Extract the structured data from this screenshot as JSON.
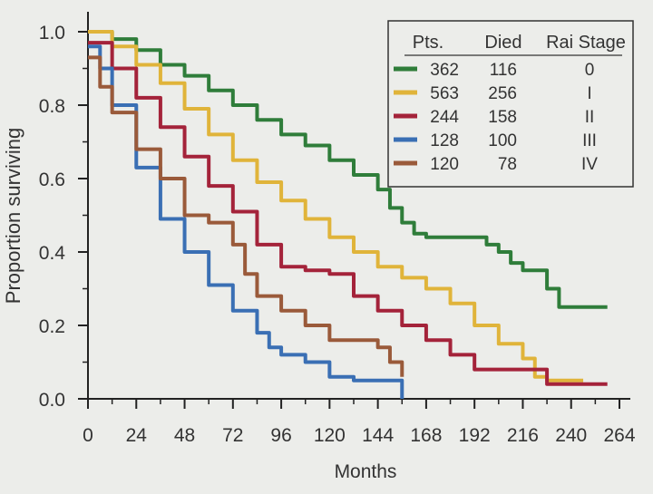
{
  "chart_data": {
    "type": "line",
    "xlabel": "Months",
    "ylabel": "Proportion surviving",
    "xlim": [
      0,
      264
    ],
    "ylim": [
      0,
      1.0
    ],
    "x_ticks": [
      0,
      24,
      48,
      72,
      96,
      120,
      144,
      168,
      192,
      216,
      240,
      264
    ],
    "y_ticks": [
      0.0,
      0.2,
      0.4,
      0.6,
      0.8,
      1.0
    ],
    "y_tick_labels": [
      "0.0",
      "0.2",
      "0.4",
      "0.6",
      "0.8",
      "1.0"
    ],
    "grid": false,
    "legend": {
      "placement": "top-right",
      "headers": [
        "Pts.",
        "Died",
        "Rai Stage"
      ],
      "rows": [
        {
          "pts": "362",
          "died": "116",
          "stage": "0"
        },
        {
          "pts": "563",
          "died": "256",
          "stage": "I"
        },
        {
          "pts": "244",
          "died": "158",
          "stage": "II"
        },
        {
          "pts": "128",
          "died": "100",
          "stage": "III"
        },
        {
          "pts": "120",
          "died": "78",
          "stage": "IV"
        }
      ]
    },
    "series": [
      {
        "color": "#2f7d3a",
        "x": [
          0,
          12,
          24,
          36,
          48,
          60,
          72,
          84,
          96,
          108,
          120,
          132,
          144,
          150,
          156,
          162,
          168,
          180,
          192,
          198,
          204,
          210,
          216,
          222,
          228,
          234,
          240,
          250,
          258
        ],
        "y": [
          1.0,
          0.98,
          0.95,
          0.91,
          0.88,
          0.84,
          0.8,
          0.76,
          0.72,
          0.69,
          0.65,
          0.61,
          0.57,
          0.52,
          0.48,
          0.45,
          0.44,
          0.44,
          0.44,
          0.42,
          0.4,
          0.37,
          0.35,
          0.35,
          0.3,
          0.25,
          0.25,
          0.25,
          0.25
        ]
      },
      {
        "color": "#e0b43a",
        "x": [
          0,
          12,
          24,
          36,
          48,
          60,
          72,
          84,
          96,
          108,
          120,
          132,
          144,
          156,
          168,
          180,
          192,
          204,
          216,
          222,
          228,
          240,
          246
        ],
        "y": [
          1.0,
          0.96,
          0.91,
          0.86,
          0.79,
          0.72,
          0.65,
          0.59,
          0.54,
          0.49,
          0.44,
          0.4,
          0.36,
          0.33,
          0.3,
          0.26,
          0.2,
          0.15,
          0.11,
          0.06,
          0.05,
          0.05,
          0.05
        ]
      },
      {
        "color": "#a4233a",
        "x": [
          0,
          12,
          24,
          36,
          48,
          60,
          72,
          84,
          96,
          108,
          120,
          132,
          144,
          156,
          168,
          180,
          192,
          204,
          216,
          228,
          240,
          252,
          258
        ],
        "y": [
          0.97,
          0.9,
          0.82,
          0.74,
          0.66,
          0.58,
          0.51,
          0.42,
          0.36,
          0.35,
          0.34,
          0.28,
          0.24,
          0.2,
          0.16,
          0.12,
          0.08,
          0.08,
          0.08,
          0.04,
          0.04,
          0.04,
          0.04
        ]
      },
      {
        "color": "#3a6fb4",
        "x": [
          0,
          6,
          12,
          24,
          36,
          48,
          60,
          72,
          84,
          90,
          96,
          108,
          120,
          132,
          144,
          150,
          156
        ],
        "y": [
          0.96,
          0.9,
          0.8,
          0.63,
          0.49,
          0.4,
          0.31,
          0.24,
          0.18,
          0.14,
          0.12,
          0.1,
          0.06,
          0.05,
          0.05,
          0.05,
          0.0
        ]
      },
      {
        "color": "#9a5a3a",
        "x": [
          0,
          6,
          12,
          24,
          36,
          48,
          60,
          72,
          78,
          84,
          96,
          108,
          120,
          132,
          144,
          150,
          156
        ],
        "y": [
          0.93,
          0.85,
          0.78,
          0.68,
          0.6,
          0.5,
          0.48,
          0.42,
          0.34,
          0.28,
          0.24,
          0.2,
          0.16,
          0.16,
          0.14,
          0.1,
          0.06
        ]
      }
    ]
  }
}
